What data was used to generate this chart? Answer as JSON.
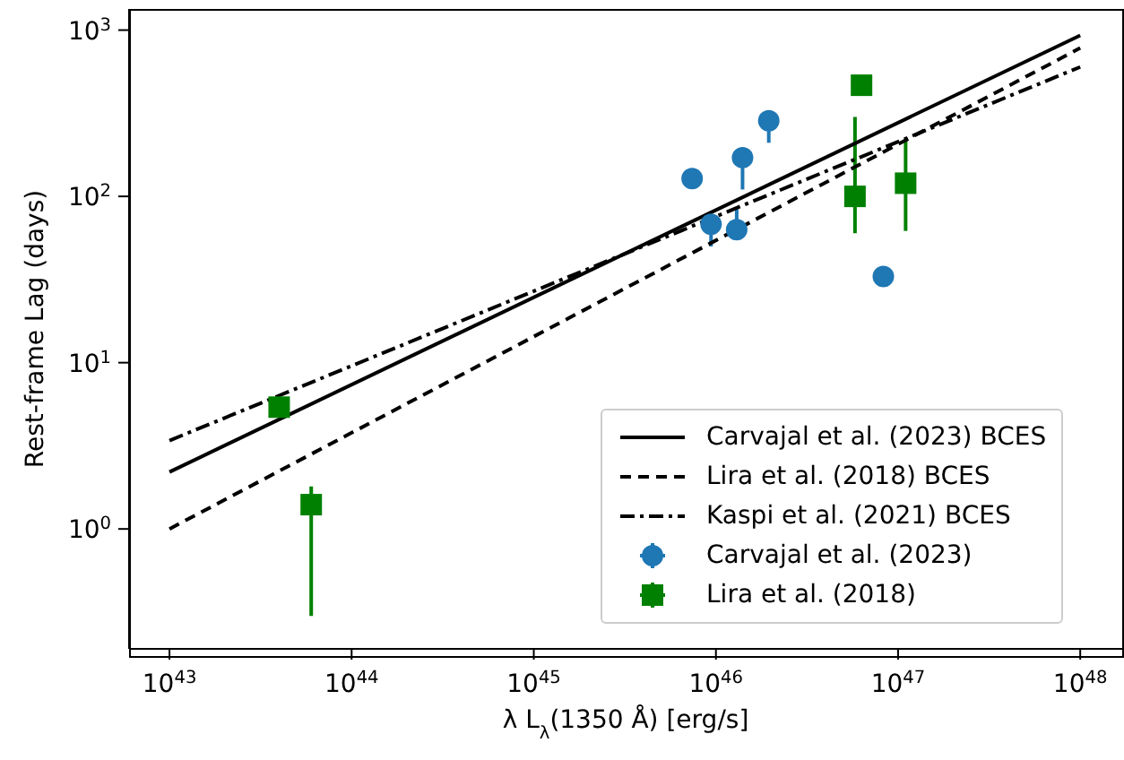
{
  "chart_data": {
    "type": "scatter",
    "xlabel": "λ L$_{λ}$(1350 Å) [erg/s]",
    "ylabel": "Rest-frame Lag (days)",
    "log": "xy",
    "legend": "bottom right",
    "xlim": [
      6e+42,
      1.7e+48
    ],
    "xticks": [
      {
        "value": 1e+43,
        "label": "10$^{43}$"
      },
      {
        "value": 1e+44,
        "label": "10$^{44}$"
      },
      {
        "value": 1e+45,
        "label": "10$^{45}$"
      },
      {
        "value": 1e+46,
        "label": "10$^{46}$"
      },
      {
        "value": 1e+47,
        "label": "10$^{47}$"
      },
      {
        "value": 1e+48,
        "label": "10$^{48}$"
      }
    ],
    "ylim": [
      0.19,
      1340
    ],
    "yticks": [
      {
        "value": 1,
        "label": "10$^{0}$"
      },
      {
        "value": 10,
        "label": "10$^{1}$"
      },
      {
        "value": 100,
        "label": "10$^{2}$"
      },
      {
        "value": 1000,
        "label": "10$^{3}$"
      }
    ],
    "series": [
      {
        "name": "Carvajal et al. (2023) BCES",
        "type": "line",
        "line_style": "solid",
        "marker": "none",
        "color": "#000000",
        "x": [
          1e+43,
          1e+48
        ],
        "values": [
          2.2,
          930
        ]
      },
      {
        "name": "Lira et al. (2018) BCES",
        "type": "line",
        "line_style": "dashed",
        "marker": "none",
        "color": "#000000",
        "x": [
          1e+43,
          1e+48
        ],
        "values": [
          1.0,
          780
        ]
      },
      {
        "name": "Kaspi et al. (2021) BCES",
        "type": "line",
        "line_style": "dashdot",
        "marker": "none",
        "color": "#000000",
        "x": [
          1e+43,
          1e+48
        ],
        "values": [
          3.4,
          600
        ]
      },
      {
        "name": "Carvajal et al. (2023)",
        "type": "scatter",
        "marker": "circle",
        "color": "#1f77b4",
        "x": [
          7.4e+45,
          9.4e+45,
          1.3e+46,
          1.4e+46,
          1.95e+46,
          8.3e+46
        ],
        "values": [
          128,
          68,
          63,
          171,
          285,
          33
        ],
        "errors": [
          null,
          [
            50,
            75
          ],
          [
            58,
            85
          ],
          [
            110,
            180
          ],
          [
            210,
            300
          ],
          null
        ]
      },
      {
        "name": "Lira et al. (2018)",
        "type": "scatter",
        "marker": "square",
        "color": "#008000",
        "x": [
          4e+43,
          6e+43,
          5.8e+46,
          6.3e+46,
          1.1e+47
        ],
        "values": [
          5.4,
          1.4,
          100,
          466,
          120
        ],
        "errors": [
          null,
          [
            0.3,
            1.8
          ],
          [
            60,
            300
          ],
          null,
          [
            62,
            220
          ]
        ]
      }
    ]
  }
}
